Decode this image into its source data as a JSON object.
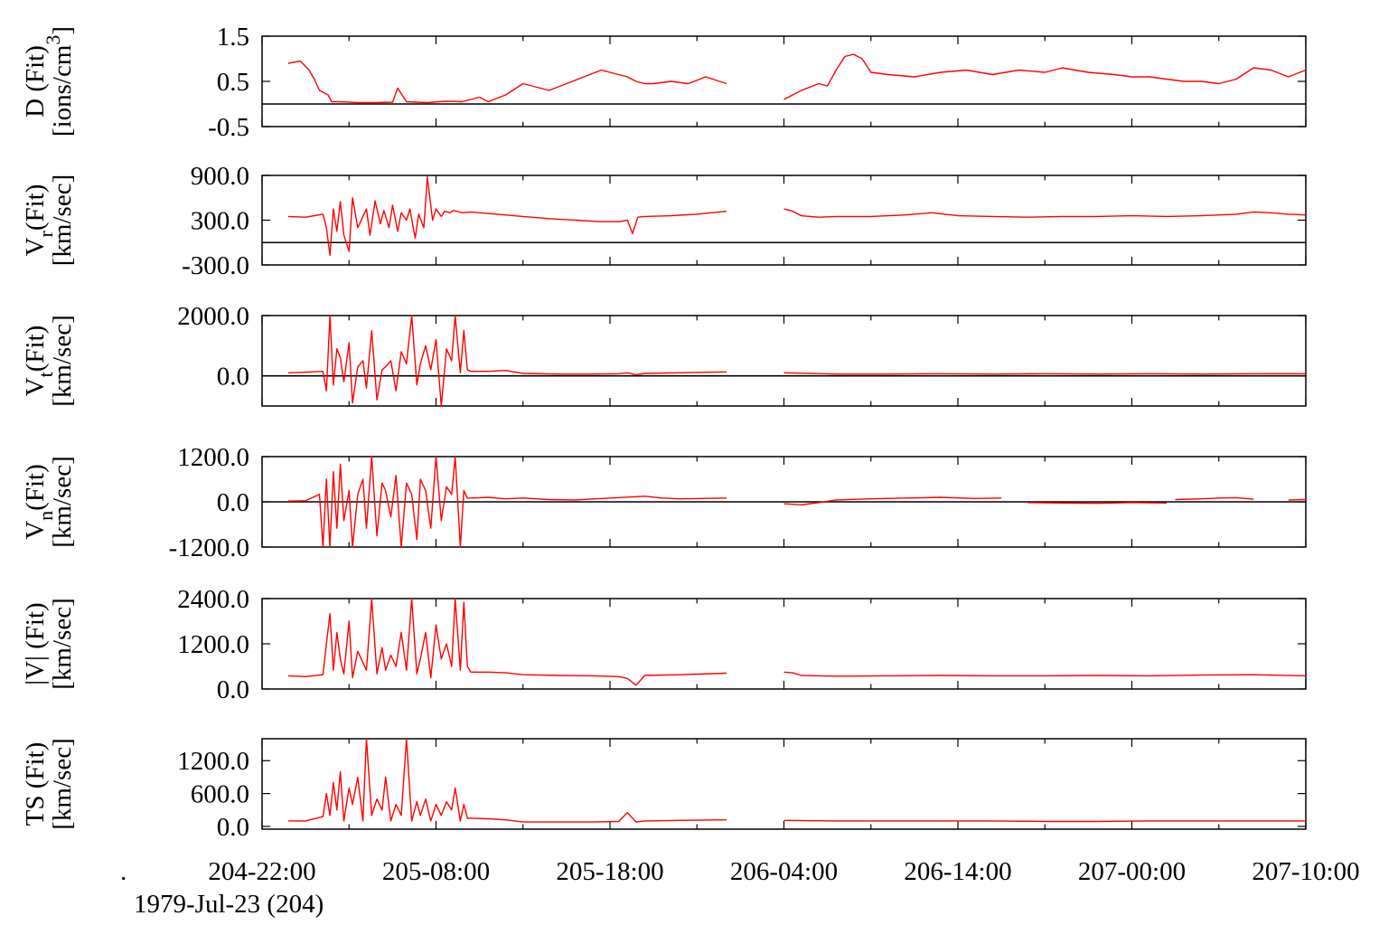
{
  "chart_data": {
    "type": "line",
    "x_tick_labels": [
      "204-22:00",
      "205-08:00",
      "205-18:00",
      "206-04:00",
      "206-14:00",
      "207-00:00",
      "207-10:00"
    ],
    "x_range_hours": [
      0,
      60
    ],
    "date_label": "1979-Jul-23 (204)",
    "date_label_prefix": ".",
    "line_color": "#ff0000",
    "data_gap": [
      26.8,
      30.0
    ],
    "panels": [
      {
        "id": "density",
        "ylabel_main": "D (Fit)",
        "ylabel_unit": "[ions/cm",
        "ylabel_unit_sup": "3",
        "ylabel_unit_end": "]",
        "ylim": [
          -0.5,
          1.5
        ],
        "yticks": [
          -0.5,
          0.5,
          1.5
        ],
        "ytick_labels": [
          "-0.5",
          "0.5",
          "1.5"
        ],
        "zero_line": 0,
        "series": [
          {
            "x": [
              1.5,
              2.2,
              2.7,
              3.0,
              3.3,
              3.8,
              4.0,
              4.5,
              5.5,
              6.5,
              7.5,
              7.8,
              8.3,
              9.5,
              10.5,
              11.5,
              12.5,
              13.0,
              14.0,
              15.0,
              15.5,
              16.5,
              17.5,
              18.5,
              19.5,
              21.0,
              21.5,
              22.0,
              22.5,
              23.5,
              24.5,
              25.5,
              26.7
            ],
            "y": [
              0.9,
              0.95,
              0.75,
              0.55,
              0.3,
              0.2,
              0.05,
              0.05,
              0.03,
              0.03,
              0.04,
              0.35,
              0.05,
              0.03,
              0.06,
              0.05,
              0.15,
              0.05,
              0.2,
              0.45,
              0.4,
              0.3,
              0.45,
              0.6,
              0.75,
              0.6,
              0.5,
              0.45,
              0.45,
              0.5,
              0.45,
              0.6,
              0.45
            ]
          },
          {
            "x": [
              30.0,
              31.0,
              32.0,
              32.5,
              33.0,
              33.5,
              34.0,
              34.5,
              35.0,
              36.0,
              37.5,
              39.0,
              40.5,
              42.0,
              43.5,
              45.0,
              46.0,
              47.5,
              49.0,
              50.0,
              51.0,
              52.0,
              53.0,
              54.0,
              55.0,
              56.0,
              57.0,
              58.0,
              59.0,
              60.0
            ],
            "y": [
              0.1,
              0.3,
              0.45,
              0.4,
              0.75,
              1.05,
              1.1,
              1.0,
              0.7,
              0.65,
              0.6,
              0.7,
              0.75,
              0.65,
              0.75,
              0.7,
              0.8,
              0.7,
              0.65,
              0.6,
              0.6,
              0.55,
              0.5,
              0.5,
              0.45,
              0.55,
              0.8,
              0.75,
              0.6,
              0.75
            ]
          }
        ]
      },
      {
        "id": "vr",
        "ylabel_main": "V",
        "ylabel_sub": "r",
        "ylabel_rest": "(Fit)",
        "ylabel_unit": "[km/sec]",
        "ylim": [
          -300,
          900
        ],
        "yticks": [
          -300,
          300,
          900
        ],
        "ytick_labels": [
          "-300.0",
          "300.0",
          "900.0"
        ],
        "zero_line": 0,
        "series": [
          {
            "x": [
              1.5,
              2.5,
              3.5,
              3.7,
              3.9,
              4.1,
              4.3,
              4.5,
              4.7,
              5.0,
              5.2,
              5.5,
              5.8,
              6.0,
              6.2,
              6.5,
              6.8,
              7.0,
              7.3,
              7.5,
              7.8,
              8.0,
              8.3,
              8.5,
              8.8,
              9.0,
              9.3,
              9.5,
              9.8,
              10.0,
              10.3,
              10.5,
              10.8,
              11.0,
              11.5,
              12.0,
              13.5,
              15.0,
              16.5,
              18.0,
              19.5,
              20.5,
              21.0,
              21.3,
              21.6,
              22.0,
              23.5,
              25.0,
              26.7
            ],
            "y": [
              350,
              340,
              380,
              200,
              -170,
              450,
              150,
              550,
              100,
              -120,
              600,
              200,
              350,
              450,
              100,
              560,
              250,
              430,
              200,
              500,
              150,
              400,
              300,
              450,
              60,
              380,
              200,
              880,
              300,
              450,
              350,
              420,
              400,
              430,
              400,
              410,
              380,
              350,
              320,
              300,
              280,
              280,
              300,
              120,
              340,
              350,
              360,
              380,
              420
            ]
          },
          {
            "x": [
              30.0,
              30.5,
              31.0,
              32.0,
              33.0,
              35.0,
              37.0,
              38.5,
              40.0,
              42.0,
              44.0,
              46.0,
              48.0,
              50.0,
              52.0,
              54.0,
              56.0,
              57.0,
              58.0,
              59.0,
              60.0
            ],
            "y": [
              450,
              420,
              360,
              340,
              350,
              350,
              370,
              400,
              360,
              350,
              340,
              350,
              350,
              360,
              350,
              360,
              380,
              410,
              400,
              380,
              370
            ]
          }
        ]
      },
      {
        "id": "vt",
        "ylabel_main": "V",
        "ylabel_sub": "t",
        "ylabel_rest": "(Fit)",
        "ylabel_unit": "[km/sec]",
        "ylim": [
          -1000,
          2000
        ],
        "yticks": [
          0,
          2000
        ],
        "ytick_labels": [
          "0.0",
          "2000.0"
        ],
        "zero_line": 0,
        "series": [
          {
            "x": [
              1.5,
              2.5,
              3.5,
              3.7,
              3.9,
              4.1,
              4.3,
              4.5,
              4.7,
              5.0,
              5.2,
              5.5,
              5.8,
              6.0,
              6.3,
              6.6,
              6.9,
              7.1,
              7.4,
              7.7,
              8.0,
              8.3,
              8.6,
              8.9,
              9.1,
              9.4,
              9.7,
              10.0,
              10.3,
              10.6,
              10.9,
              11.1,
              11.4,
              11.6,
              11.8,
              12.0,
              13.0,
              14.0,
              15.0,
              17.0,
              19.0,
              20.5,
              21.0,
              21.5,
              22.0,
              24.0,
              26.7
            ],
            "y": [
              100,
              120,
              150,
              -500,
              2000,
              -300,
              900,
              600,
              -200,
              1100,
              -900,
              300,
              500,
              -400,
              1500,
              -800,
              200,
              300,
              500,
              -500,
              800,
              400,
              2000,
              -300,
              400,
              1000,
              200,
              1200,
              -1000,
              900,
              500,
              2000,
              100,
              1500,
              200,
              150,
              150,
              180,
              80,
              60,
              60,
              70,
              100,
              40,
              80,
              100,
              130
            ]
          },
          {
            "x": [
              30.0,
              33.0,
              36.0,
              39.0,
              42.0,
              45.0,
              48.0,
              51.0,
              54.0,
              57.0,
              60.0
            ],
            "y": [
              100,
              60,
              60,
              70,
              60,
              70,
              60,
              70,
              60,
              70,
              70
            ]
          }
        ]
      },
      {
        "id": "vn",
        "ylabel_main": "V",
        "ylabel_sub": "n",
        "ylabel_rest": "(Fit)",
        "ylabel_unit": "[km/sec]",
        "ylim": [
          -1200,
          1200
        ],
        "yticks": [
          -1200,
          0,
          1200
        ],
        "ytick_labels": [
          "-1200.0",
          "0.0",
          "1200.0"
        ],
        "zero_line": 0,
        "series": [
          {
            "x": [
              1.5,
              2.5,
              3.3,
              3.5,
              3.7,
              3.9,
              4.1,
              4.3,
              4.5,
              4.7,
              5.0,
              5.2,
              5.5,
              5.8,
              6.0,
              6.3,
              6.6,
              6.9,
              7.1,
              7.4,
              7.7,
              8.0,
              8.3,
              8.6,
              8.9,
              9.1,
              9.4,
              9.7,
              10.0,
              10.3,
              10.6,
              10.9,
              11.1,
              11.4,
              11.6,
              11.8,
              12.0,
              13.0,
              14.0,
              15.0,
              16.5,
              18.0,
              20.0,
              22.0,
              23.0,
              24.0,
              26.7
            ],
            "y": [
              20,
              30,
              200,
              -1200,
              600,
              -1200,
              800,
              -700,
              1000,
              -500,
              300,
              -1200,
              200,
              600,
              -700,
              1200,
              -900,
              500,
              300,
              -400,
              700,
              -1200,
              500,
              200,
              -1000,
              600,
              300,
              -700,
              1200,
              -500,
              400,
              200,
              1200,
              -1200,
              300,
              100,
              100,
              120,
              80,
              100,
              60,
              50,
              100,
              150,
              100,
              80,
              100
            ]
          },
          {
            "x": [
              30.0,
              31.0,
              32.0,
              33.0,
              35.0,
              37.0,
              39.0,
              41.0,
              42.5
            ],
            "y": [
              -50,
              -80,
              -20,
              50,
              80,
              100,
              120,
              90,
              100
            ]
          },
          {
            "x": [
              44.0,
              46.0,
              48.0,
              50.0,
              52.0
            ],
            "y": [
              -20,
              -30,
              -40,
              -20,
              -30
            ]
          },
          {
            "x": [
              52.5,
              54.0,
              55.0,
              56.0,
              57.0
            ],
            "y": [
              60,
              80,
              100,
              110,
              70
            ]
          },
          {
            "x": [
              59.0,
              60.0
            ],
            "y": [
              50,
              60
            ]
          }
        ]
      },
      {
        "id": "vmag",
        "ylabel_main": "|V| (Fit)",
        "ylabel_unit": "[km/sec]",
        "ylim": [
          0,
          2400
        ],
        "yticks": [
          0,
          1200,
          2400
        ],
        "ytick_labels": [
          "0.0",
          "1200.0",
          "2400.0"
        ],
        "zero_line": null,
        "series": [
          {
            "x": [
              1.5,
              2.5,
              3.5,
              3.7,
              3.9,
              4.1,
              4.3,
              4.5,
              4.7,
              5.0,
              5.2,
              5.5,
              5.8,
              6.0,
              6.3,
              6.6,
              6.9,
              7.1,
              7.4,
              7.7,
              8.0,
              8.3,
              8.6,
              8.9,
              9.1,
              9.4,
              9.7,
              10.0,
              10.3,
              10.6,
              10.9,
              11.1,
              11.4,
              11.6,
              11.8,
              12.0,
              13.0,
              14.0,
              15.0,
              17.0,
              19.0,
              20.5,
              21.0,
              21.5,
              22.0,
              24.0,
              26.7
            ],
            "y": [
              350,
              330,
              380,
              1200,
              2000,
              500,
              1500,
              800,
              400,
              1800,
              300,
              1000,
              700,
              500,
              2400,
              400,
              1100,
              500,
              900,
              600,
              1500,
              500,
              2400,
              400,
              800,
              1500,
              300,
              1700,
              800,
              1200,
              600,
              2400,
              500,
              2300,
              600,
              450,
              450,
              430,
              380,
              360,
              350,
              330,
              280,
              100,
              360,
              380,
              420
            ]
          },
          {
            "x": [
              30.0,
              30.5,
              31.0,
              33.0,
              36.0,
              39.0,
              42.0,
              45.0,
              48.0,
              51.0,
              54.0,
              57.0,
              60.0
            ],
            "y": [
              450,
              430,
              360,
              340,
              350,
              360,
              350,
              350,
              360,
              350,
              370,
              380,
              350
            ]
          }
        ]
      },
      {
        "id": "ts",
        "ylabel_main": "TS (Fit)",
        "ylabel_unit": "[km/sec]",
        "ylim": [
          -50,
          1600
        ],
        "yticks": [
          0,
          600,
          1200
        ],
        "ytick_labels": [
          "0.0",
          "600.0",
          "1200.0"
        ],
        "zero_line": null,
        "series": [
          {
            "x": [
              1.5,
              2.5,
              3.5,
              3.7,
              3.9,
              4.1,
              4.3,
              4.5,
              4.7,
              5.0,
              5.2,
              5.5,
              5.8,
              6.0,
              6.3,
              6.6,
              6.9,
              7.1,
              7.4,
              7.7,
              8.0,
              8.3,
              8.6,
              8.9,
              9.1,
              9.4,
              9.7,
              10.0,
              10.3,
              10.6,
              10.9,
              11.1,
              11.4,
              11.6,
              11.8,
              12.0,
              13.0,
              14.0,
              15.0,
              17.0,
              19.0,
              20.5,
              21.0,
              21.5,
              22.0,
              24.0,
              26.7
            ],
            "y": [
              100,
              100,
              180,
              600,
              200,
              800,
              300,
              1000,
              100,
              700,
              400,
              900,
              100,
              1600,
              200,
              500,
              300,
              900,
              100,
              400,
              200,
              1600,
              100,
              450,
              200,
              500,
              100,
              400,
              200,
              450,
              300,
              700,
              100,
              400,
              150,
              150,
              140,
              120,
              80,
              80,
              80,
              90,
              250,
              80,
              100,
              110,
              120
            ]
          },
          {
            "x": [
              30.0,
              33.0,
              36.0,
              39.0,
              42.0,
              45.0,
              48.0,
              51.0,
              54.0,
              57.0,
              60.0
            ],
            "y": [
              110,
              100,
              100,
              100,
              100,
              90,
              90,
              100,
              100,
              100,
              100
            ]
          }
        ]
      }
    ]
  }
}
